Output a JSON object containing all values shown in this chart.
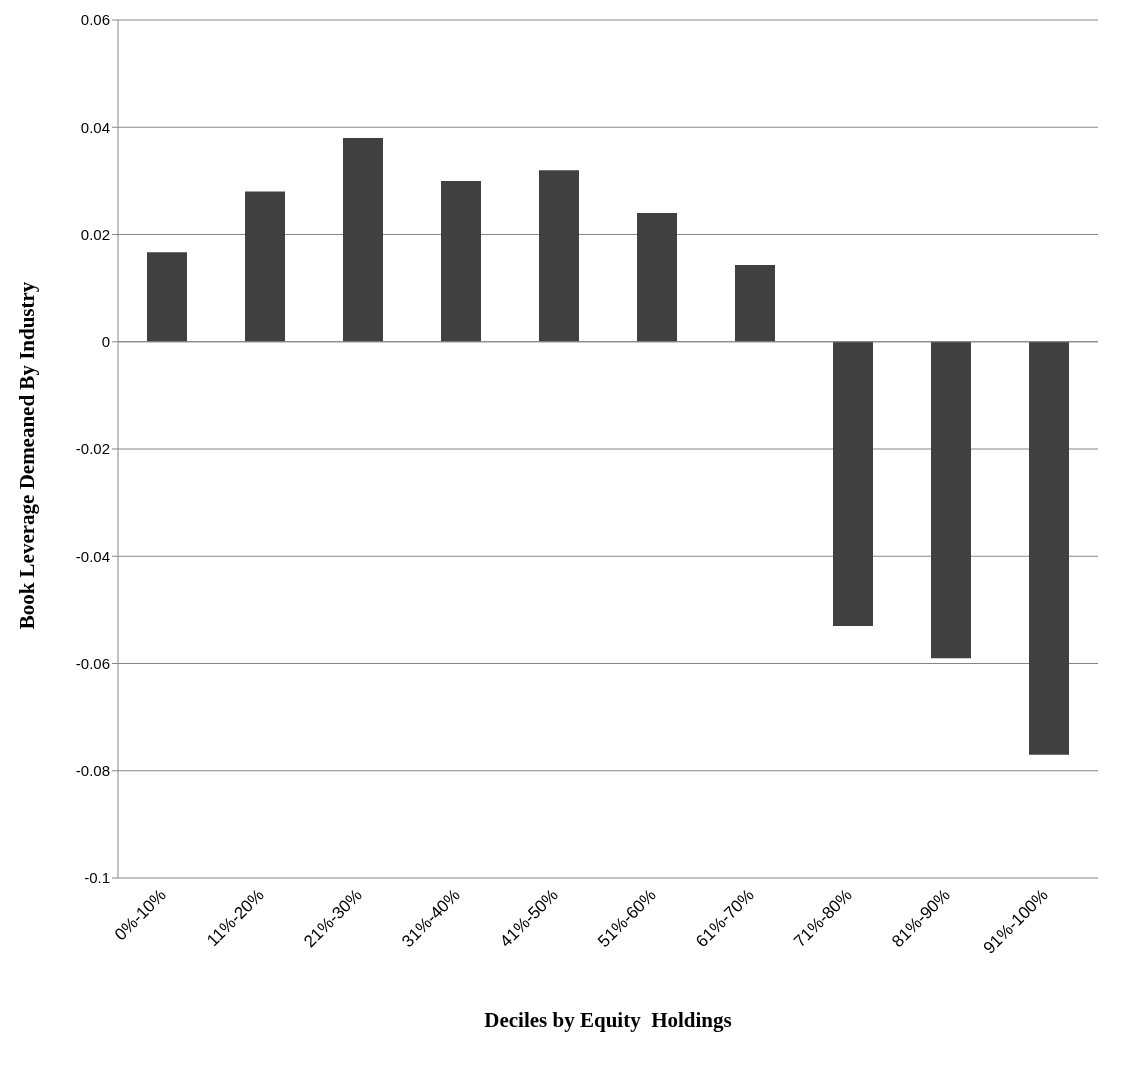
{
  "chart_data": {
    "type": "bar",
    "xlabel": "Deciles by Equity  Holdings",
    "ylabel": "Book Leverage Demeaned By Industry",
    "categories": [
      "0%-10%",
      "11%-20%",
      "21%-30%",
      "31%-40%",
      "41%-50%",
      "51%-60%",
      "61%-70%",
      "71%-80%",
      "81%-90%",
      "91%-100%"
    ],
    "values": [
      0.0167,
      0.028,
      0.038,
      0.03,
      0.032,
      0.024,
      0.0143,
      -0.053,
      -0.059,
      -0.077
    ],
    "color": "#404040",
    "ylim": [
      -0.1,
      0.06
    ],
    "yticks": [
      -0.1,
      -0.08,
      -0.06,
      -0.04,
      -0.02,
      0,
      0.02,
      0.04,
      0.06
    ],
    "grid": "y",
    "legend": false
  }
}
